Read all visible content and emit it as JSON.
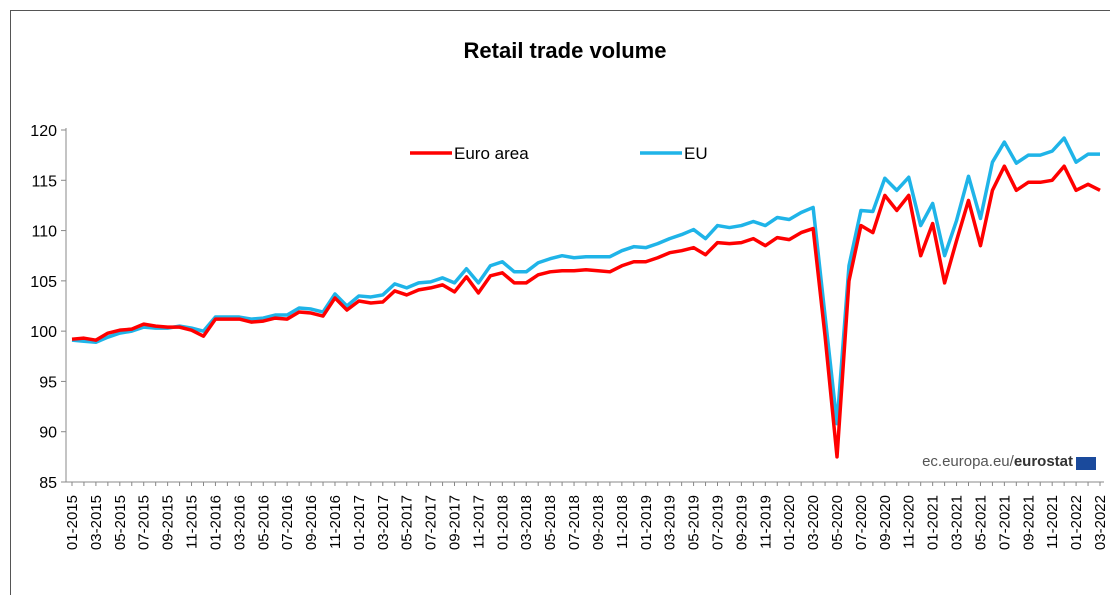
{
  "chart_data": {
    "type": "line",
    "title": "Retail trade volume",
    "categories": [
      "01-2015",
      null,
      "03-2015",
      null,
      "05-2015",
      null,
      "07-2015",
      null,
      "09-2015",
      null,
      "11-2015",
      null,
      "01-2016",
      null,
      "03-2016",
      null,
      "05-2016",
      null,
      "07-2016",
      null,
      "09-2016",
      null,
      "11-2016",
      null,
      "01-2017",
      null,
      "03-2017",
      null,
      "05-2017",
      null,
      "07-2017",
      null,
      "09-2017",
      null,
      "11-2017",
      null,
      "01-2018",
      null,
      "03-2018",
      null,
      "05-2018",
      null,
      "07-2018",
      null,
      "09-2018",
      null,
      "11-2018",
      null,
      "01-2019",
      null,
      "03-2019",
      null,
      "05-2019",
      null,
      "07-2019",
      null,
      "09-2019",
      null,
      "11-2019",
      null,
      "01-2020",
      null,
      "03-2020",
      null,
      "05-2020",
      null,
      "07-2020",
      null,
      "09-2020",
      null,
      "11-2020",
      null,
      "01-2021",
      null,
      "03-2021",
      null,
      "05-2021",
      null,
      "07-2021",
      null,
      "09-2021",
      null,
      "11-2021",
      null,
      "01-2022",
      null,
      "03-2022"
    ],
    "series": [
      {
        "name": "Euro area",
        "color": "#ff0000",
        "values": [
          99.2,
          99.3,
          99.1,
          99.8,
          100.1,
          100.2,
          100.7,
          100.5,
          100.4,
          100.4,
          100.1,
          99.5,
          101.2,
          101.2,
          101.2,
          100.9,
          101.0,
          101.3,
          101.2,
          101.9,
          101.8,
          101.5,
          103.3,
          102.1,
          103.0,
          102.8,
          102.9,
          104.0,
          103.6,
          104.1,
          104.3,
          104.6,
          103.9,
          105.4,
          103.8,
          105.5,
          105.8,
          104.8,
          104.8,
          105.6,
          105.9,
          106.0,
          106.0,
          106.1,
          106.0,
          105.9,
          106.5,
          106.9,
          106.9,
          107.3,
          107.8,
          108.0,
          108.3,
          107.6,
          108.8,
          108.7,
          108.8,
          109.2,
          108.5,
          109.3,
          109.1,
          109.8,
          110.2,
          99.5,
          87.5,
          105.0,
          110.5,
          109.8,
          113.5,
          112.0,
          113.5,
          107.5,
          110.7,
          104.8,
          109.0,
          113.0,
          108.5,
          114.0,
          116.4,
          114.0,
          114.8,
          114.8,
          115.0,
          116.4,
          114.0,
          114.6,
          114.0
        ]
      },
      {
        "name": "EU",
        "color": "#1fb4e8",
        "values": [
          99.1,
          99.0,
          98.9,
          99.4,
          99.8,
          100.0,
          100.4,
          100.3,
          100.3,
          100.5,
          100.3,
          100.0,
          101.4,
          101.4,
          101.4,
          101.2,
          101.3,
          101.6,
          101.6,
          102.3,
          102.2,
          101.9,
          103.7,
          102.5,
          103.5,
          103.4,
          103.6,
          104.7,
          104.3,
          104.8,
          104.9,
          105.3,
          104.8,
          106.2,
          104.8,
          106.5,
          106.9,
          105.9,
          105.9,
          106.8,
          107.2,
          107.5,
          107.3,
          107.4,
          107.4,
          107.4,
          108.0,
          108.4,
          108.3,
          108.7,
          109.2,
          109.6,
          110.1,
          109.2,
          110.5,
          110.3,
          110.5,
          110.9,
          110.5,
          111.3,
          111.1,
          111.8,
          112.3,
          101.5,
          90.8,
          106.5,
          112.0,
          111.9,
          115.2,
          114.0,
          115.3,
          110.5,
          112.7,
          107.5,
          111.0,
          115.4,
          111.2,
          116.8,
          118.8,
          116.7,
          117.5,
          117.5,
          117.9,
          119.2,
          116.8,
          117.6,
          117.6
        ]
      }
    ],
    "ylim": [
      85,
      120
    ],
    "yticks": [
      85,
      90,
      95,
      100,
      105,
      110,
      115,
      120
    ],
    "grid": false,
    "legend": "top",
    "annotation": [
      "ec.europa.eu/",
      "eurostat"
    ]
  }
}
